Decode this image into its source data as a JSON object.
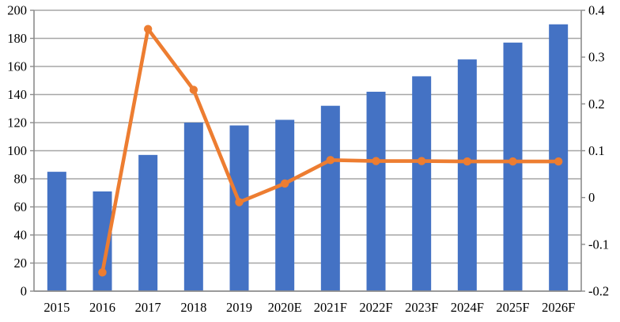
{
  "chart_data": {
    "type": "combo-bar-line",
    "title": "",
    "xlabel": "",
    "ylabel": "",
    "legend": "none",
    "grid": true,
    "background": "#ffffff",
    "gridline_color": "#a6a6a6",
    "axis_line_color": "#8c8c8c",
    "categories": [
      "2015",
      "2016",
      "2017",
      "2018",
      "2019",
      "2020E",
      "2021F",
      "2022F",
      "2023F",
      "2024F",
      "2025F",
      "2026F"
    ],
    "series": [
      {
        "kind": "bar",
        "axis": "left",
        "color": "#4472c4",
        "values": [
          85,
          71,
          97,
          120,
          118,
          122,
          132,
          142,
          153,
          165,
          177,
          190
        ]
      },
      {
        "kind": "line",
        "axis": "right",
        "color": "#ed7d31",
        "values": [
          null,
          -0.16,
          0.36,
          0.23,
          -0.01,
          0.03,
          0.08,
          0.078,
          0.078,
          0.077,
          0.077,
          0.077
        ]
      }
    ],
    "left_axis": {
      "min": 0,
      "max": 200,
      "step": 20,
      "tick_labels": [
        "0",
        "20",
        "40",
        "60",
        "80",
        "100",
        "120",
        "140",
        "160",
        "180",
        "200"
      ]
    },
    "right_axis": {
      "min": -0.2,
      "max": 0.4,
      "step": 0.1,
      "tick_labels": [
        "-0.2",
        "-0.1",
        "0",
        "0.1",
        "0.2",
        "0.3",
        "0.4"
      ]
    }
  }
}
